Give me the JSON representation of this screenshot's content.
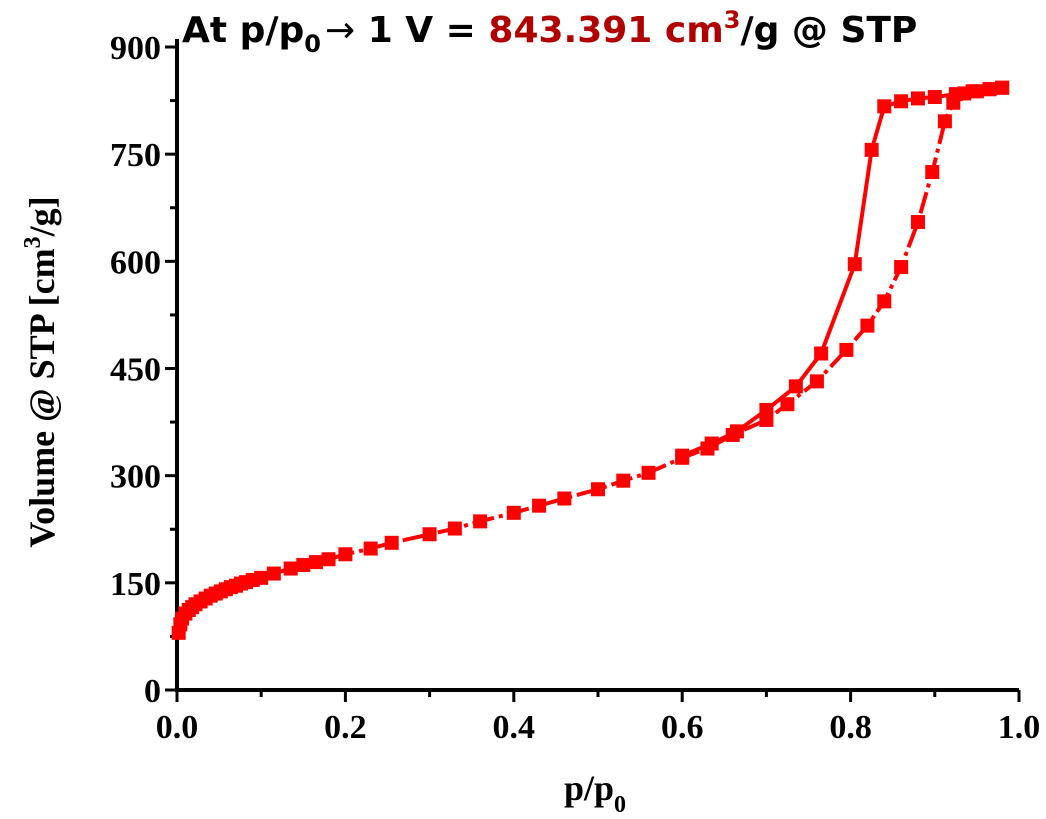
{
  "chart_data": {
    "type": "line",
    "annotation": {
      "prefix": "At p/p",
      "prefix_sub": "0",
      "arrow": "→",
      "mid": " 1 V = ",
      "value": "843.391 cm",
      "value_sup": "3",
      "suffix": "/g @ STP",
      "value_color": "#b00000"
    },
    "xlabel": {
      "main": "p/p",
      "sub": "0"
    },
    "ylabel": {
      "main": "Volume @ STP [cm",
      "sup": "3",
      "tail": "/g]"
    },
    "xlim": [
      0,
      1.0
    ],
    "ylim": [
      0,
      900
    ],
    "xticks": [
      0.0,
      0.2,
      0.4,
      0.6,
      0.8,
      1.0
    ],
    "xtick_labels": [
      "0.0",
      "0.2",
      "0.4",
      "0.6",
      "0.8",
      "1.0"
    ],
    "yticks": [
      0,
      150,
      300,
      450,
      600,
      750,
      900
    ],
    "ytick_labels": [
      "0",
      "150",
      "300",
      "450",
      "600",
      "750",
      "900"
    ],
    "series_color": "#ff0000",
    "series": [
      {
        "values": [
          [
            0.002,
            80
          ],
          [
            0.004,
            92
          ],
          [
            0.006,
            100
          ],
          [
            0.01,
            107
          ],
          [
            0.014,
            112
          ],
          [
            0.018,
            116
          ],
          [
            0.022,
            120
          ],
          [
            0.028,
            124
          ],
          [
            0.034,
            128
          ],
          [
            0.04,
            132
          ],
          [
            0.046,
            135
          ],
          [
            0.052,
            138
          ],
          [
            0.058,
            141
          ],
          [
            0.064,
            144
          ],
          [
            0.07,
            146
          ],
          [
            0.076,
            149
          ],
          [
            0.082,
            151
          ],
          [
            0.09,
            154
          ],
          [
            0.1,
            157
          ],
          [
            0.115,
            163
          ],
          [
            0.135,
            170
          ],
          [
            0.15,
            175
          ],
          [
            0.165,
            179
          ],
          [
            0.18,
            183
          ],
          [
            0.2,
            190
          ],
          [
            0.23,
            198
          ],
          [
            0.255,
            206
          ],
          [
            0.3,
            218
          ],
          [
            0.33,
            226
          ],
          [
            0.36,
            236
          ],
          [
            0.4,
            248
          ],
          [
            0.43,
            258
          ],
          [
            0.46,
            268
          ],
          [
            0.5,
            281
          ],
          [
            0.53,
            293
          ],
          [
            0.56,
            304
          ],
          [
            0.6,
            325
          ],
          [
            0.63,
            338
          ],
          [
            0.66,
            357
          ],
          [
            0.7,
            378
          ],
          [
            0.725,
            400
          ],
          [
            0.76,
            432
          ],
          [
            0.795,
            476
          ],
          [
            0.82,
            510
          ],
          [
            0.84,
            544
          ],
          [
            0.86,
            592
          ],
          [
            0.88,
            655
          ],
          [
            0.897,
            725
          ],
          [
            0.912,
            796
          ],
          [
            0.922,
            822
          ],
          [
            0.935,
            835
          ],
          [
            0.95,
            838
          ],
          [
            0.965,
            841
          ],
          [
            0.98,
            843
          ]
        ]
      },
      {
        "values": [
          [
            0.98,
            843
          ],
          [
            0.965,
            841
          ],
          [
            0.945,
            838
          ],
          [
            0.925,
            834
          ],
          [
            0.9,
            830
          ],
          [
            0.88,
            828
          ],
          [
            0.86,
            824
          ],
          [
            0.84,
            817
          ],
          [
            0.825,
            756
          ],
          [
            0.805,
            596
          ],
          [
            0.765,
            471
          ],
          [
            0.735,
            425
          ],
          [
            0.7,
            392
          ],
          [
            0.665,
            362
          ],
          [
            0.635,
            345
          ],
          [
            0.6,
            328
          ]
        ]
      }
    ]
  }
}
